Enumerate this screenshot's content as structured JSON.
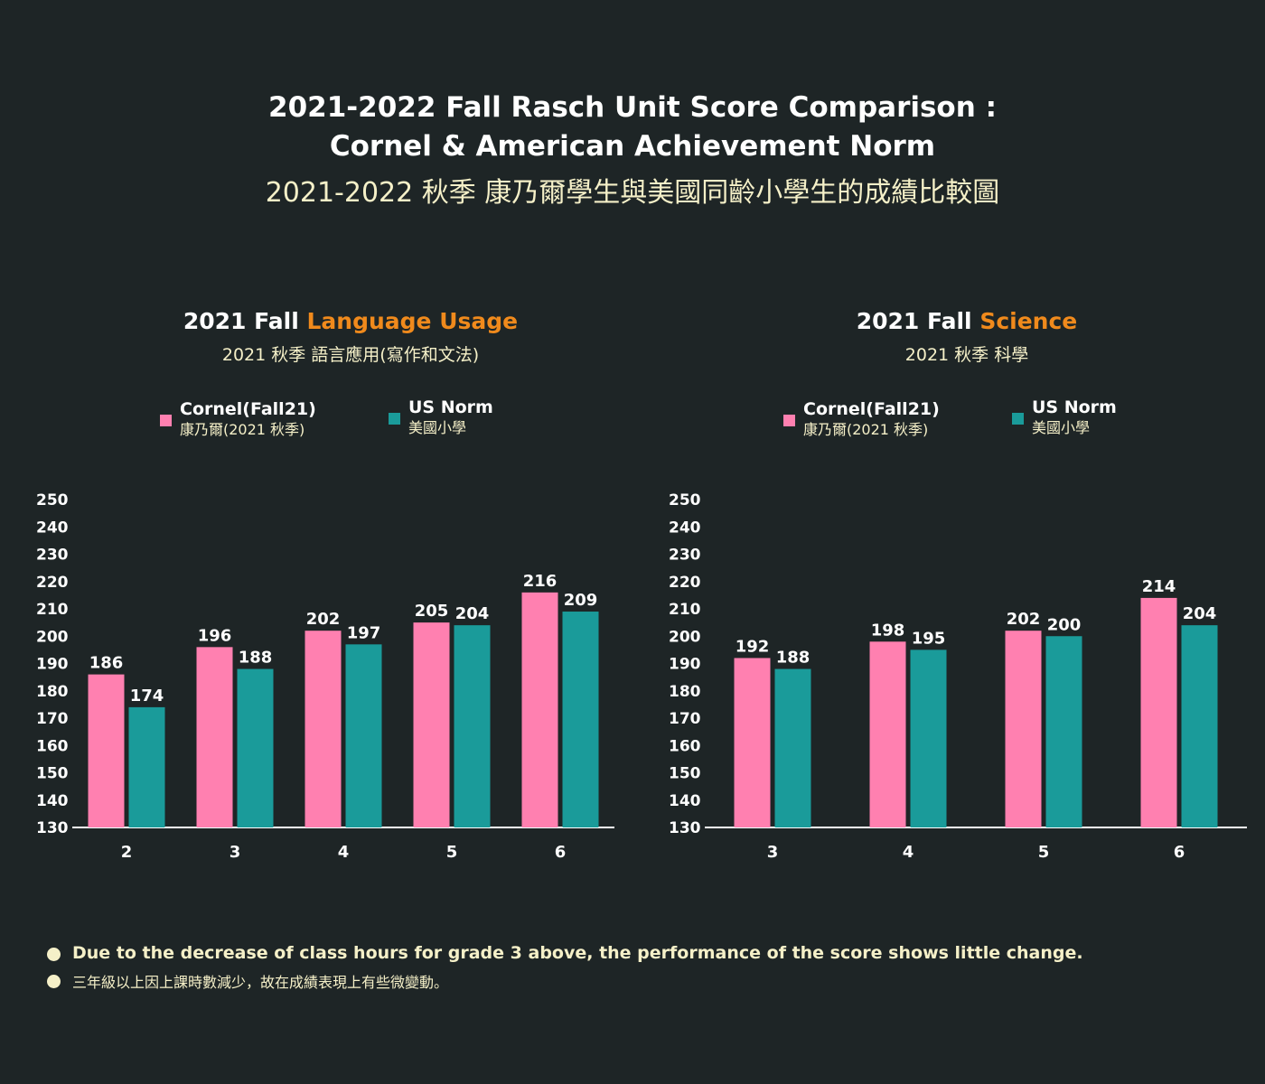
{
  "header": {
    "title_line1": "2021-2022 Fall Rasch Unit Score Comparison :",
    "title_line2": "Cornel & American Achievement Norm",
    "subtitle": "2021-2022 秋季 康乃爾學生與美國同齡小學生的成績比較圖"
  },
  "colors": {
    "background": "#1e2526",
    "cornel": "#ff80b0",
    "us_norm": "#1a9b9a",
    "highlight": "#f08a1c",
    "cream": "#f5f0c8"
  },
  "chart_data": [
    {
      "type": "bar",
      "title_prefix": "2021 Fall ",
      "title_highlight": "Language Usage",
      "subtitle": "2021 秋季 語言應用(寫作和文法)",
      "categories": [
        "2",
        "3",
        "4",
        "5",
        "6"
      ],
      "series": [
        {
          "name": "Cornel(Fall21)",
          "name_zh": "康乃爾(2021 秋季)",
          "values": [
            186,
            196,
            202,
            205,
            216
          ]
        },
        {
          "name": "US Norm",
          "name_zh": "美國小學",
          "values": [
            174,
            188,
            197,
            204,
            209
          ]
        }
      ],
      "ylim": [
        130,
        250
      ],
      "yticks": [
        250,
        240,
        230,
        220,
        210,
        200,
        190,
        180,
        170,
        160,
        150,
        140,
        130
      ],
      "legend_position": "top"
    },
    {
      "type": "bar",
      "title_prefix": "2021 Fall ",
      "title_highlight": "Science",
      "subtitle": "2021 秋季 科學",
      "categories": [
        "3",
        "4",
        "5",
        "6"
      ],
      "series": [
        {
          "name": "Cornel(Fall21)",
          "name_zh": "康乃爾(2021 秋季)",
          "values": [
            192,
            198,
            202,
            214
          ]
        },
        {
          "name": "US Norm",
          "name_zh": "美國小學",
          "values": [
            188,
            195,
            200,
            204
          ]
        }
      ],
      "ylim": [
        130,
        250
      ],
      "yticks": [
        250,
        240,
        230,
        220,
        210,
        200,
        190,
        180,
        170,
        160,
        150,
        140,
        130
      ],
      "legend_position": "top"
    }
  ],
  "notes": [
    {
      "en": "Due to the decrease of class hours for grade 3 above, the performance of the score shows little change."
    },
    {
      "zh": "三年級以上因上課時數減少，故在成績表現上有些微變動。"
    }
  ]
}
